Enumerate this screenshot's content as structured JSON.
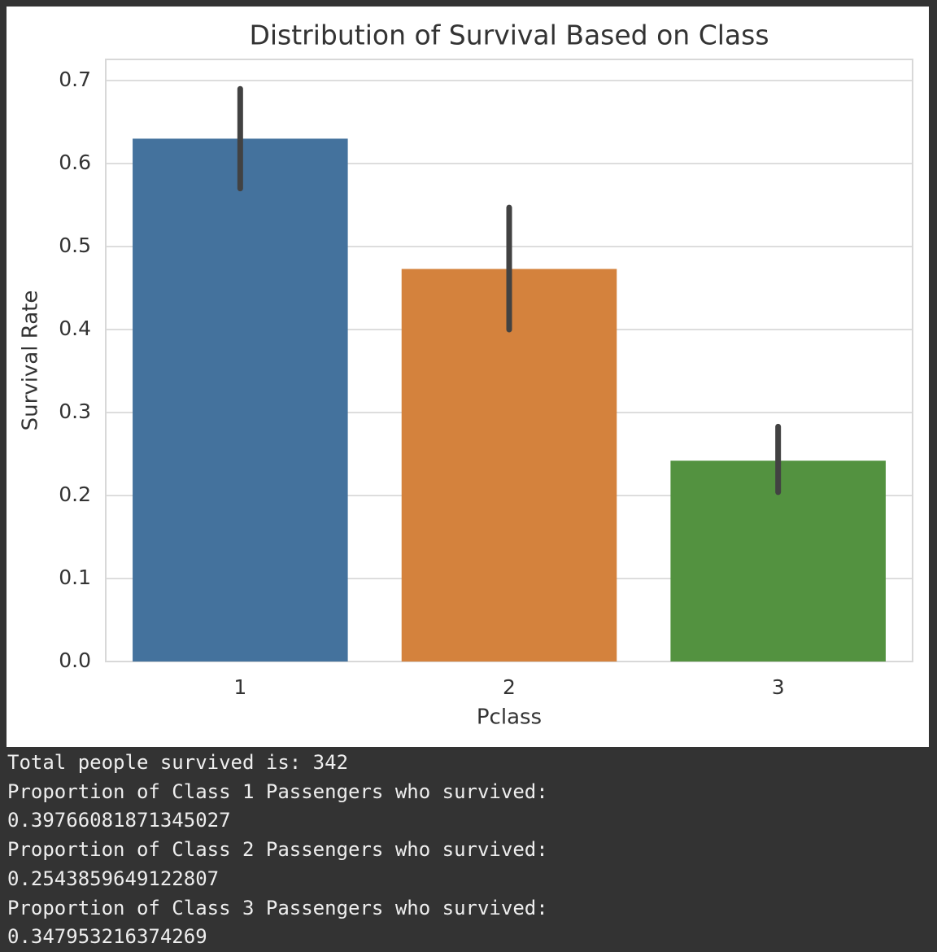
{
  "chart_data": {
    "type": "bar",
    "title": "Distribution of Survival Based on Class",
    "x_label": "Pclass",
    "y_label": "Survival Rate",
    "categories": [
      "1",
      "2",
      "3"
    ],
    "values": [
      0.63,
      0.473,
      0.242
    ],
    "ci_lower": [
      0.57,
      0.4,
      0.204
    ],
    "ci_upper": [
      0.69,
      0.547,
      0.283
    ],
    "colors": [
      "#44729d",
      "#d4823d",
      "#539240"
    ],
    "ylim": [
      0,
      0.7255
    ],
    "yticks": [
      {
        "value": 0,
        "label": "0.0"
      },
      0.1,
      0.2,
      0.3,
      0.4,
      0.5,
      0.6,
      0.7
    ],
    "grid": true
  },
  "console_output": [
    "Total people survived is: 342",
    "Proportion of Class 1 Passengers who survived:",
    "0.39766081871345027",
    "Proportion of Class 2 Passengers who survived:",
    "0.2543859649122807",
    "Proportion of Class 3 Passengers who survived:",
    "0.347953216374269"
  ]
}
